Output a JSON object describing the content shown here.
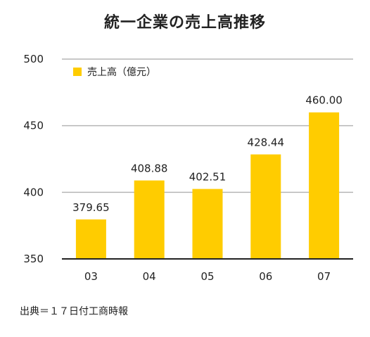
{
  "chart_data": {
    "type": "bar",
    "title": "統一企業の売上高推移",
    "categories": [
      "03",
      "04",
      "05",
      "06",
      "07"
    ],
    "series": [
      {
        "name": "売上高（億元）",
        "values": [
          379.65,
          408.88,
          402.51,
          428.44,
          460.0
        ],
        "value_labels": [
          "379.65",
          "408.88",
          "402.51",
          "428.44",
          "460.00"
        ],
        "color": "#FFCC00"
      }
    ],
    "ylim": [
      350,
      500
    ],
    "yticks": [
      350,
      400,
      450,
      500
    ],
    "ytick_labels": [
      "350",
      "400",
      "450",
      "500"
    ],
    "xlabel": "",
    "ylabel": "",
    "grid": "horizontal",
    "legend_position": "top-left",
    "source": "出典＝１７日付工商時報"
  }
}
